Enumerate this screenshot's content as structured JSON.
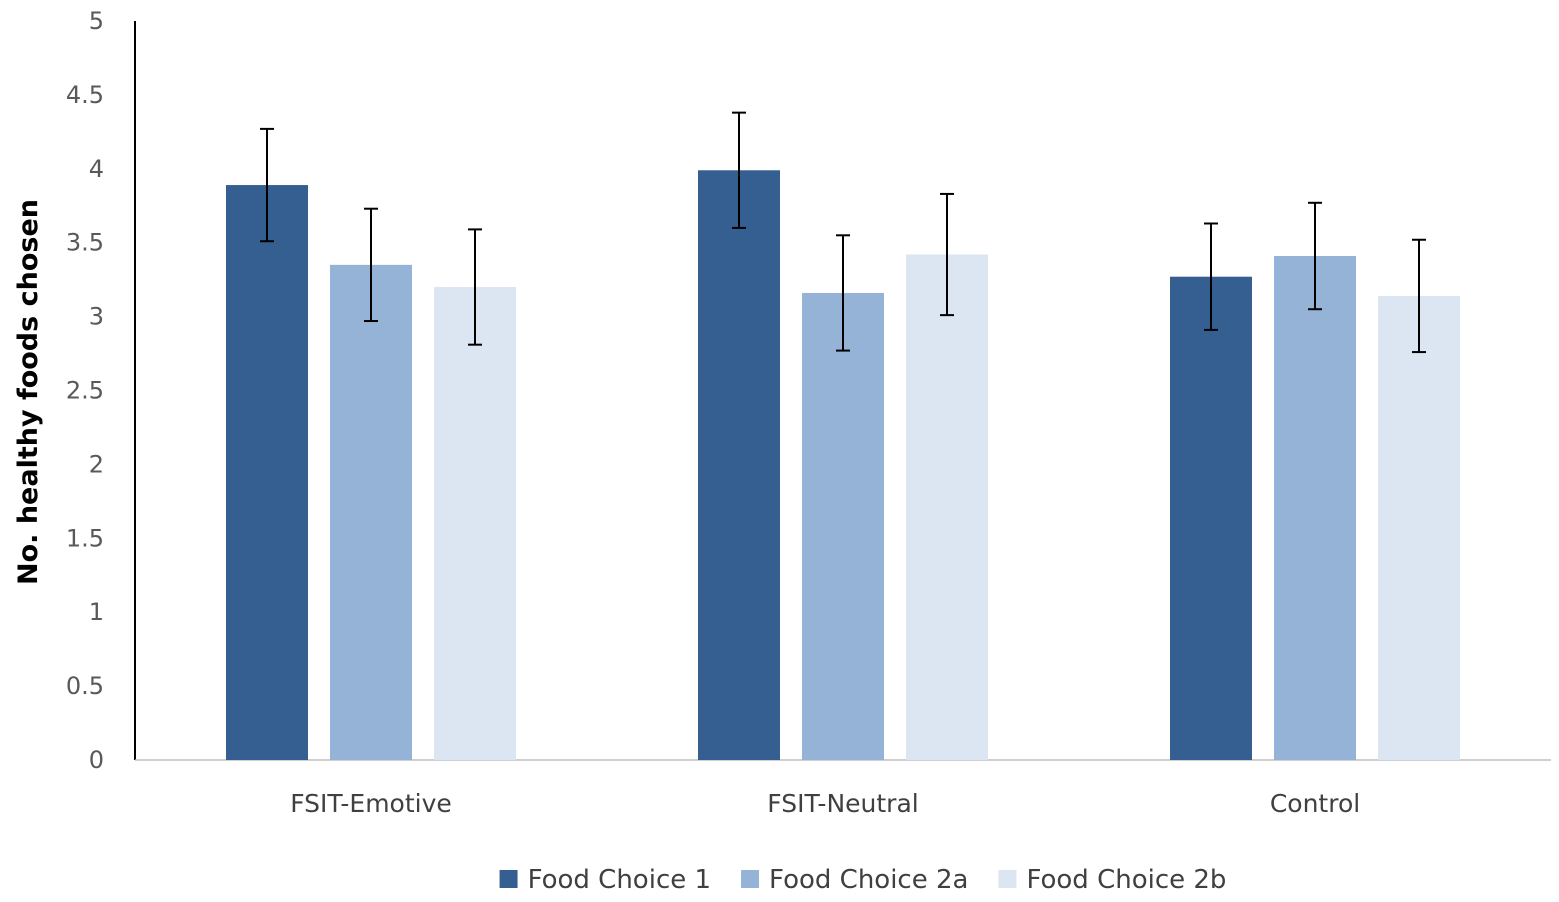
{
  "chart_data": {
    "type": "bar",
    "title": "",
    "xlabel": "",
    "ylabel": "No. healthy foods chosen",
    "ylim": [
      0,
      5
    ],
    "yticks": [
      0,
      0.5,
      1,
      1.5,
      2,
      2.5,
      3,
      3.5,
      4,
      4.5,
      5
    ],
    "ytick_labels": [
      "0",
      "0.5",
      "1",
      "1.5",
      "2",
      "2.5",
      "3",
      "3.5",
      "4",
      "4.5",
      "5"
    ],
    "categories": [
      "FSIT-Emotive",
      "FSIT-Neutral",
      "Control"
    ],
    "grid": false,
    "legend_position": "bottom",
    "series": [
      {
        "name": "Food Choice 1",
        "color": "#355E91",
        "values": [
          3.89,
          3.99,
          3.27
        ],
        "errors": [
          0.38,
          0.39,
          0.36
        ]
      },
      {
        "name": "Food Choice 2a",
        "color": "#95B3D7",
        "values": [
          3.35,
          3.16,
          3.41
        ],
        "errors": [
          0.38,
          0.39,
          0.36
        ]
      },
      {
        "name": "Food Choice 2b",
        "color": "#DCE6F2",
        "values": [
          3.2,
          3.42,
          3.14
        ],
        "errors": [
          0.39,
          0.41,
          0.38
        ]
      }
    ]
  }
}
